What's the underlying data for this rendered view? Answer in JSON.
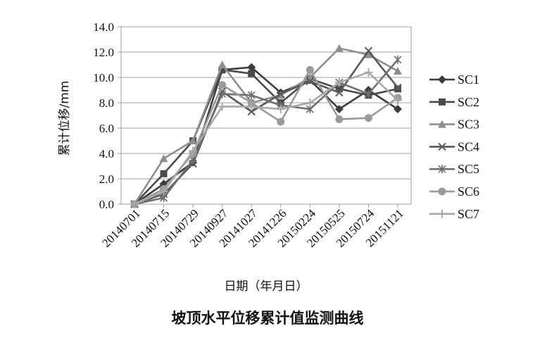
{
  "chart_data": {
    "type": "line",
    "title": "坡顶水平位移累计值监测曲线",
    "xlabel": "日期（年月日）",
    "ylabel": "累计位移/mm",
    "categories": [
      "20140701",
      "20140715",
      "20140729",
      "20140927",
      "20141027",
      "20141226",
      "20150224",
      "20150525",
      "20150724",
      "20151121"
    ],
    "y_ticks": [
      "0.0",
      "2.0",
      "4.0",
      "6.0",
      "8.0",
      "10.0",
      "12.0",
      "14.0"
    ],
    "ylim": [
      0,
      14
    ],
    "grid": "horizontal",
    "legend_position": "right",
    "series": [
      {
        "name": "SC1",
        "marker": "diamond",
        "color": "#3c3c3c",
        "values": [
          0.0,
          1.6,
          3.3,
          10.6,
          10.8,
          8.8,
          9.8,
          7.5,
          9.0,
          7.5
        ]
      },
      {
        "name": "SC2",
        "marker": "square",
        "color": "#4a4a4a",
        "values": [
          0.0,
          2.4,
          5.0,
          10.6,
          10.3,
          8.0,
          9.9,
          9.1,
          8.6,
          9.1
        ]
      },
      {
        "name": "SC3",
        "marker": "triangle",
        "color": "#8e8e8e",
        "values": [
          0.0,
          3.6,
          5.0,
          11.0,
          8.0,
          8.6,
          10.0,
          12.3,
          11.8,
          10.5
        ]
      },
      {
        "name": "SC4",
        "marker": "x",
        "color": "#595959",
        "values": [
          0.0,
          0.8,
          3.2,
          8.9,
          7.3,
          8.7,
          9.7,
          8.8,
          12.1,
          9.2
        ]
      },
      {
        "name": "SC5",
        "marker": "asterisk",
        "color": "#6e6e6e",
        "values": [
          0.0,
          0.5,
          3.5,
          8.7,
          8.6,
          7.8,
          7.5,
          9.6,
          8.7,
          11.4
        ]
      },
      {
        "name": "SC6",
        "marker": "circle",
        "color": "#9a9a9a",
        "values": [
          0.0,
          1.2,
          4.0,
          9.4,
          8.0,
          6.5,
          10.6,
          6.7,
          6.8,
          8.4
        ]
      },
      {
        "name": "SC7",
        "marker": "plus",
        "color": "#a8a8a8",
        "values": [
          0.0,
          1.0,
          4.2,
          7.7,
          7.7,
          7.5,
          8.0,
          9.6,
          10.4,
          8.2
        ]
      }
    ]
  }
}
